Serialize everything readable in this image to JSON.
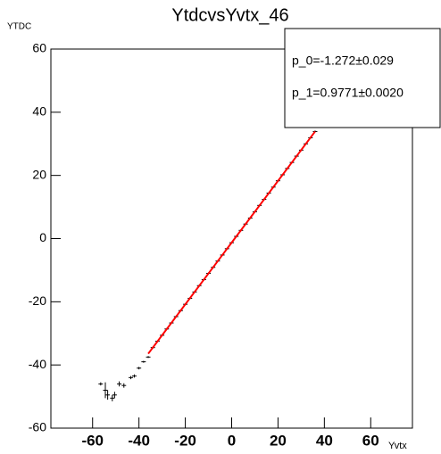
{
  "chart_data": {
    "type": "scatter",
    "title": "YtdcvsYvtx_46",
    "x_label": "Yvtx",
    "y_label": "YTDC",
    "xlim": [
      -78,
      78
    ],
    "ylim": [
      -60,
      60
    ],
    "xticks": [
      -60,
      -40,
      -20,
      0,
      20,
      40,
      60
    ],
    "yticks": [
      -60,
      -40,
      -20,
      0,
      20,
      40,
      60
    ],
    "color": "#000000",
    "x": [
      -56.5,
      -54.5,
      -53.5,
      -51.5,
      -50.5,
      -48.5,
      -46.5,
      -43.5,
      -42,
      -40,
      -38,
      -36,
      -34,
      -32,
      -30,
      -28,
      -26,
      -24,
      -22,
      -20,
      -18,
      -16,
      -14,
      -12,
      -10,
      -8,
      -6,
      -4,
      -2,
      0,
      2,
      4,
      6,
      8,
      10,
      12,
      14,
      16,
      18,
      20,
      22,
      24,
      26,
      28,
      30,
      32,
      34,
      36
    ],
    "values": [
      -46,
      -48,
      -49.5,
      -50.5,
      -49.5,
      -46,
      -46.5,
      -44,
      -43.5,
      -41,
      -39,
      -37.5,
      -34.5,
      -32.5,
      -30.6,
      -28.6,
      -26.7,
      -24.7,
      -22.8,
      -20.8,
      -18.9,
      -16.9,
      -14.9,
      -13.0,
      -11.0,
      -9.1,
      -7.1,
      -5.2,
      -3.2,
      -1.3,
      0.7,
      2.6,
      4.6,
      6.5,
      8.5,
      10.5,
      12.4,
      14.4,
      16.3,
      18.3,
      20.2,
      22.2,
      24.1,
      26.1,
      28.0,
      30.0,
      31.9,
      33.9
    ],
    "errors": [
      0.5,
      2.5,
      1.5,
      1,
      1,
      0.8,
      0.7,
      0.5,
      0.5,
      0.4,
      0.3,
      0.3,
      0.3,
      0.3,
      0.3,
      0.3,
      0.3,
      0.3,
      0.3,
      0.3,
      0.3,
      0.3,
      0.3,
      0.3,
      0.3,
      0.3,
      0.3,
      0.3,
      0.3,
      0.3,
      0.3,
      0.3,
      0.3,
      0.3,
      0.3,
      0.3,
      0.3,
      0.3,
      0.3,
      0.3,
      0.3,
      0.3,
      0.3,
      0.3,
      0.3,
      0.3,
      0.3,
      0.3
    ],
    "fit": {
      "p0": -1.272,
      "p1": 0.9771,
      "range": [
        -36,
        36
      ],
      "color": "#ff0000"
    },
    "stats": [
      "p_0=-1.272±0.029",
      "p_1=0.9771±0.0020"
    ]
  }
}
